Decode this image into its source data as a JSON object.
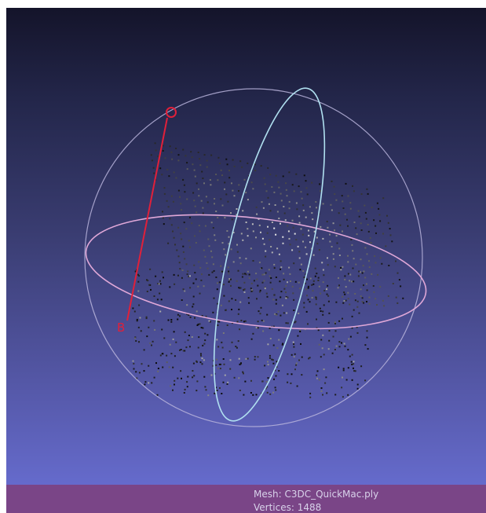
{
  "viewport": {
    "background_top": "#14142a",
    "background_bottom": "#6a70d6"
  },
  "trackball": {
    "sphere_color": "#b8b4dc",
    "horizontal_ring_color": "#e0a8d8",
    "vertical_ring_color": "#b0e0f0"
  },
  "annotations": {
    "top_marker": "O",
    "bottom_marker": "B",
    "marker_color": "#e0203a"
  },
  "status": {
    "mesh_label": "Mesh: C3DC_QuickMac.ply",
    "vertices_label": "Vertices: 1488",
    "bar_color": "#7a4587"
  }
}
